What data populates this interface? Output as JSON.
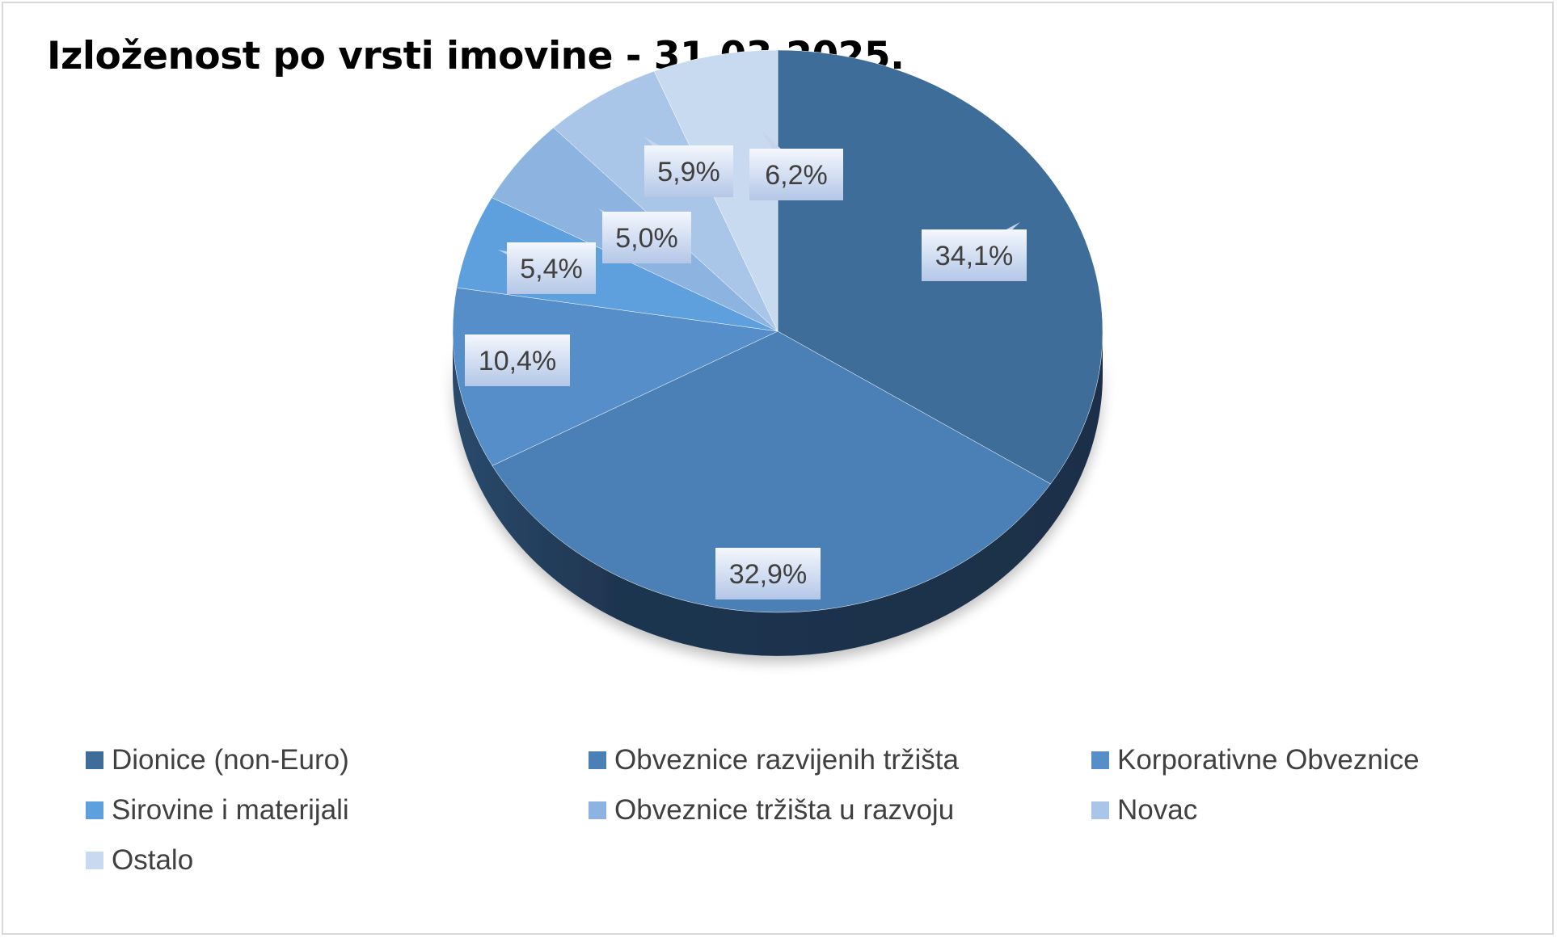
{
  "title": "Izloženost po vrsti imovine - 31.03.2025.",
  "chart_data": {
    "type": "pie",
    "title": "Izloženost po vrsti imovine - 31.03.2025.",
    "unit": "%",
    "legend_position": "bottom",
    "slices": [
      {
        "name": "Dionice (non-Euro)",
        "value": 34.1,
        "label": "34,1%",
        "color": "#3f6d99"
      },
      {
        "name": "Obveznice razvijenih tržišta",
        "value": 32.9,
        "label": "32,9%",
        "color": "#4a80b5"
      },
      {
        "name": "Korporativne Obveznice",
        "value": 10.4,
        "label": "10,4%",
        "color": "#558ec8"
      },
      {
        "name": "Sirovine i materijali",
        "value": 5.4,
        "label": "5,4%",
        "color": "#5e9fdd"
      },
      {
        "name": "Obveznice tržišta u razvoju",
        "value": 5.0,
        "label": "5,0%",
        "color": "#8db3e0"
      },
      {
        "name": "Novac",
        "value": 5.9,
        "label": "5,9%",
        "color": "#a9c6e8"
      },
      {
        "name": "Ostalo",
        "value": 6.2,
        "label": "6,2%",
        "color": "#c8daf0"
      }
    ]
  }
}
